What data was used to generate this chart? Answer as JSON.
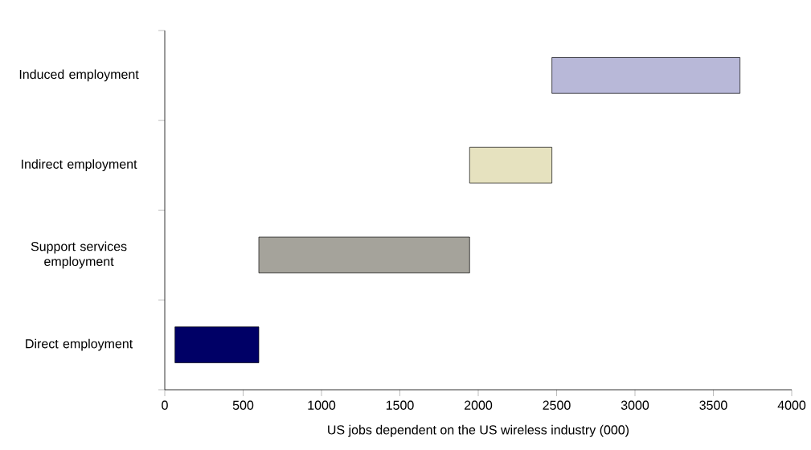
{
  "chart_data": {
    "type": "bar",
    "orientation": "horizontal",
    "categories": [
      "Induced employment",
      "Indirect employment",
      "Support services employment",
      "Direct employment"
    ],
    "base": [
      2470,
      1945,
      600,
      65
    ],
    "values": [
      1200,
      525,
      1345,
      535
    ],
    "colors": [
      "#b8b8d8",
      "#e6e2bf",
      "#a5a39b",
      "#000066"
    ],
    "xlabel": "US jobs dependent on the US wireless industry (000)",
    "xlim": [
      0,
      4000
    ],
    "xticks": [
      0,
      500,
      1000,
      1500,
      2000,
      2500,
      3000,
      3500,
      4000
    ],
    "grid": false
  }
}
